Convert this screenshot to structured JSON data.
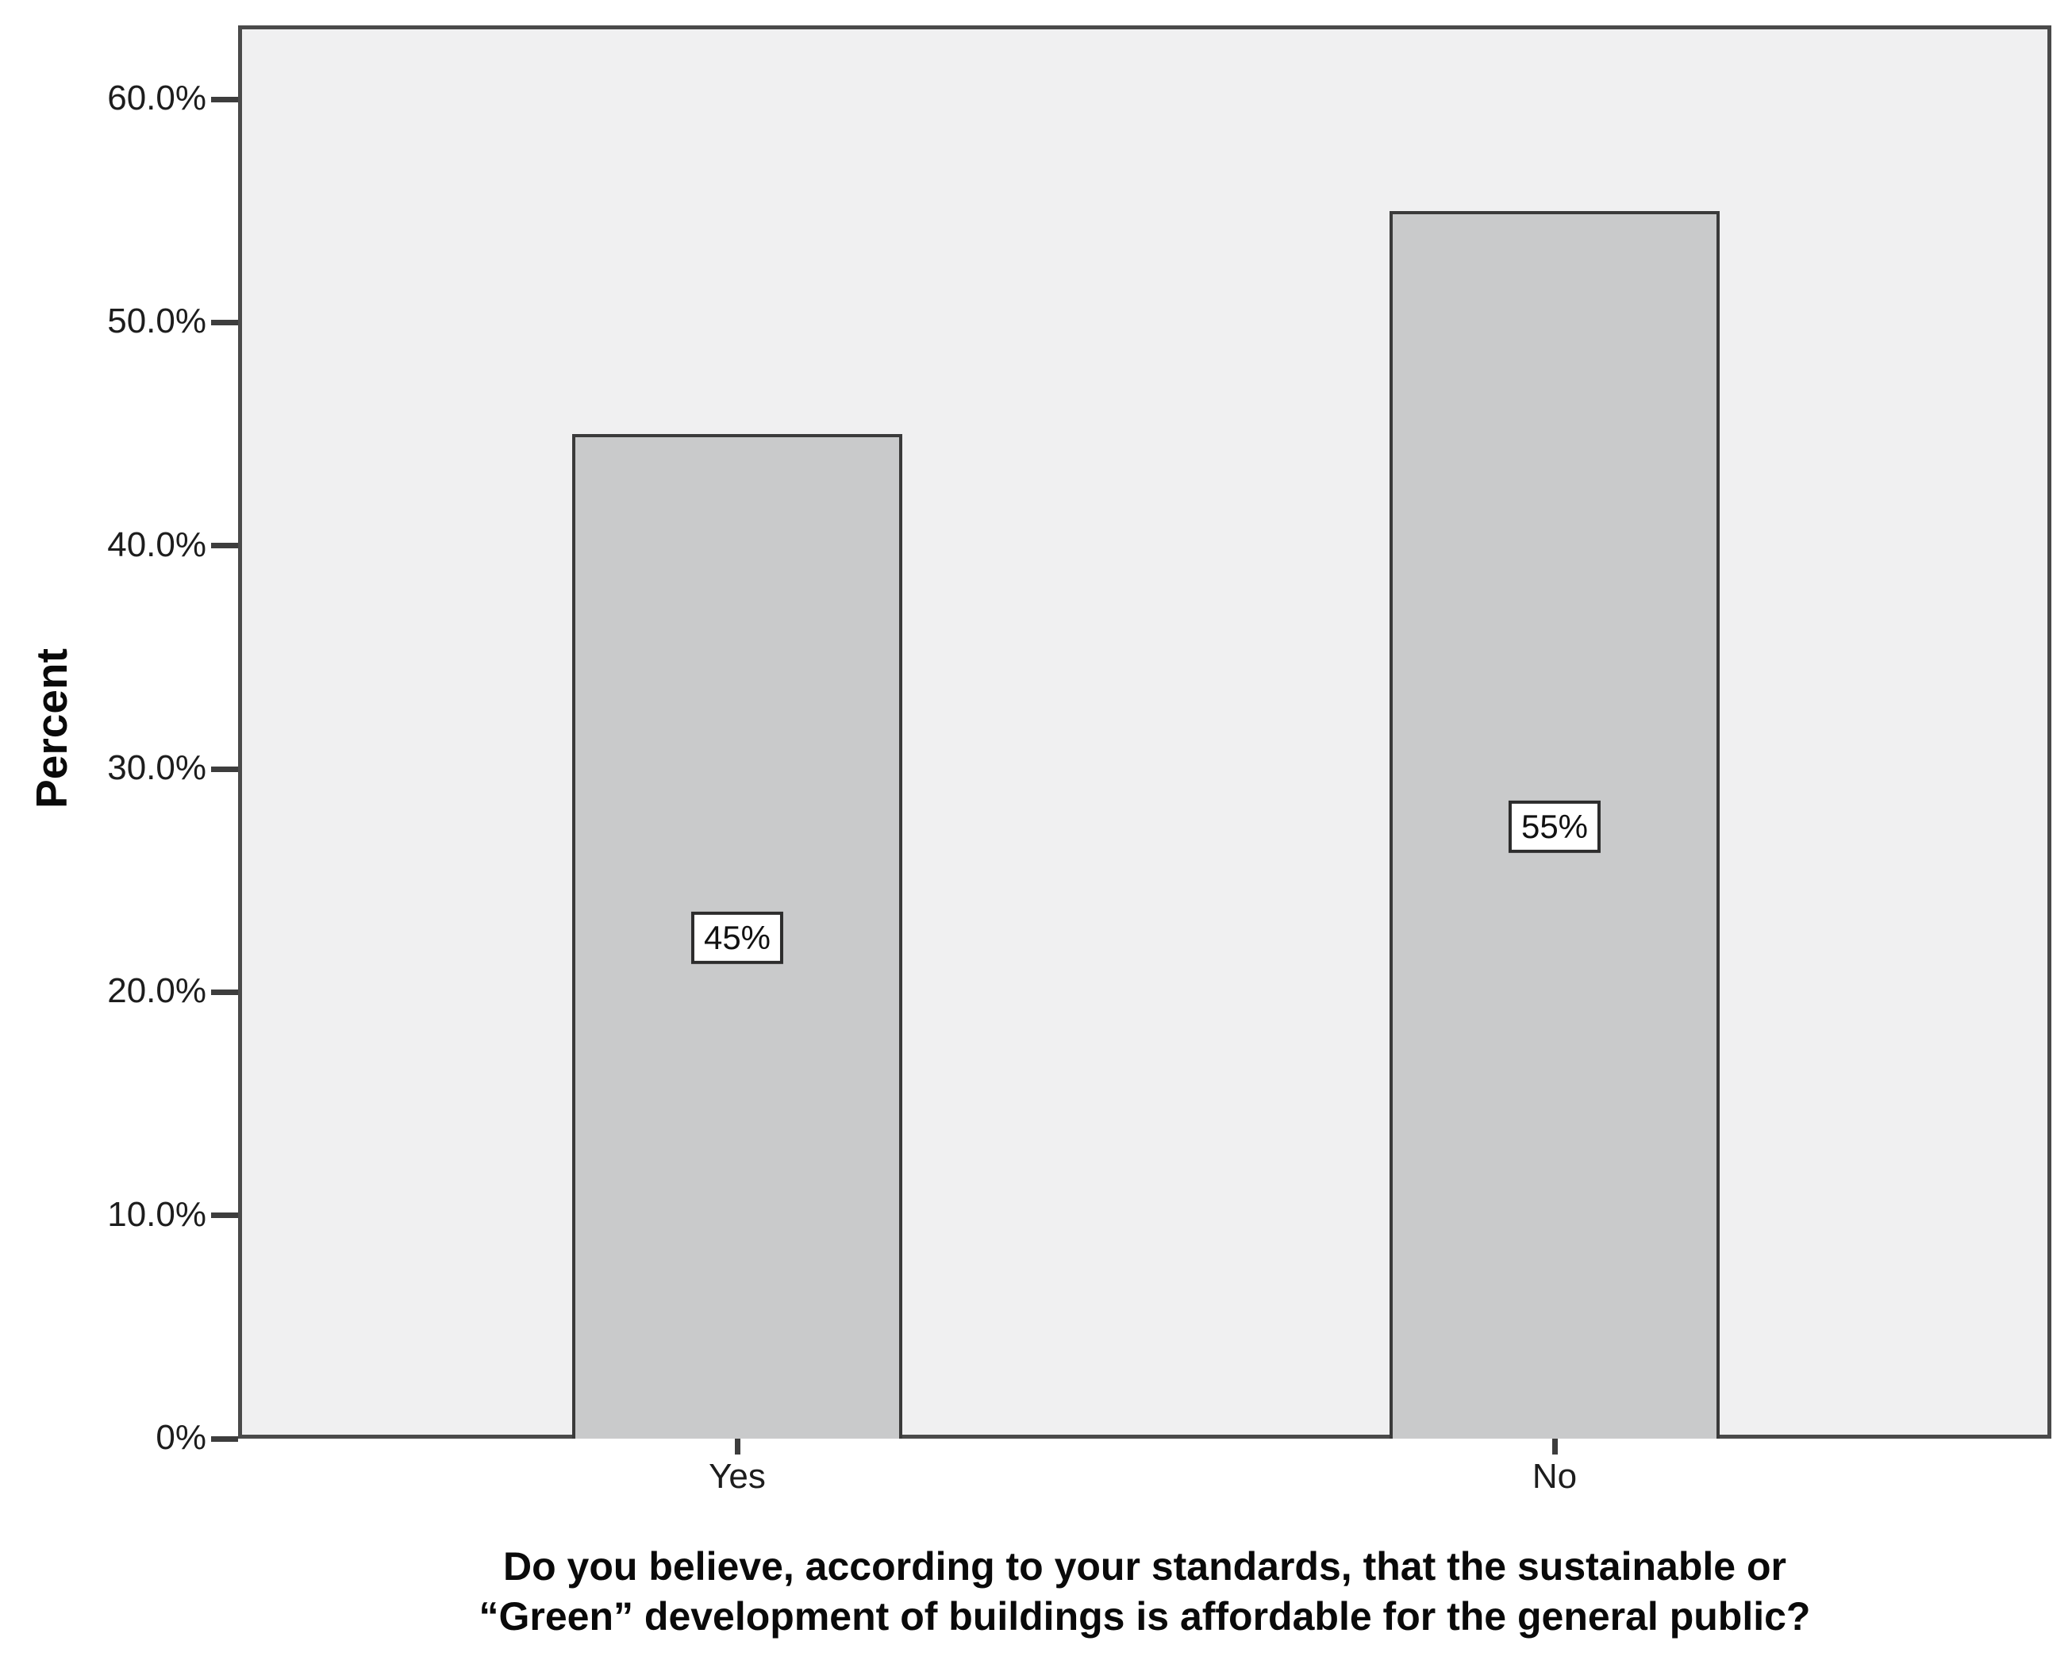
{
  "chart_data": {
    "type": "bar",
    "categories": [
      "Yes",
      "No"
    ],
    "values": [
      45,
      55
    ],
    "bar_labels": [
      "45%",
      "55%"
    ],
    "ylabel": "Percent",
    "xlabel": "Do you believe, according to your standards, that the sustainable or “Green” development of buildings is affordable for the general public?",
    "xlabel_lines": [
      "Do you believe, according to your standards, that the sustainable or",
      "“Green” development of buildings is affordable for the general public?"
    ],
    "ylim": [
      0,
      60
    ],
    "yticks": [
      {
        "value": 0,
        "label": "0%"
      },
      {
        "value": 10,
        "label": "10.0%"
      },
      {
        "value": 20,
        "label": "20.0%"
      },
      {
        "value": 30,
        "label": "30.0%"
      },
      {
        "value": 40,
        "label": "40.0%"
      },
      {
        "value": 50,
        "label": "50.0%"
      },
      {
        "value": 60,
        "label": "60.0%"
      }
    ],
    "grid": false,
    "legend_position": "none",
    "colors": {
      "bar_fill": "#c9cacb",
      "bar_border": "#3a3a3a",
      "plot_background": "#f0f0f1",
      "frame_border": "#4a4a4a",
      "label_box_background": "#ffffff",
      "label_box_border": "#2c2c2c",
      "text": "#1d1d1d"
    }
  }
}
